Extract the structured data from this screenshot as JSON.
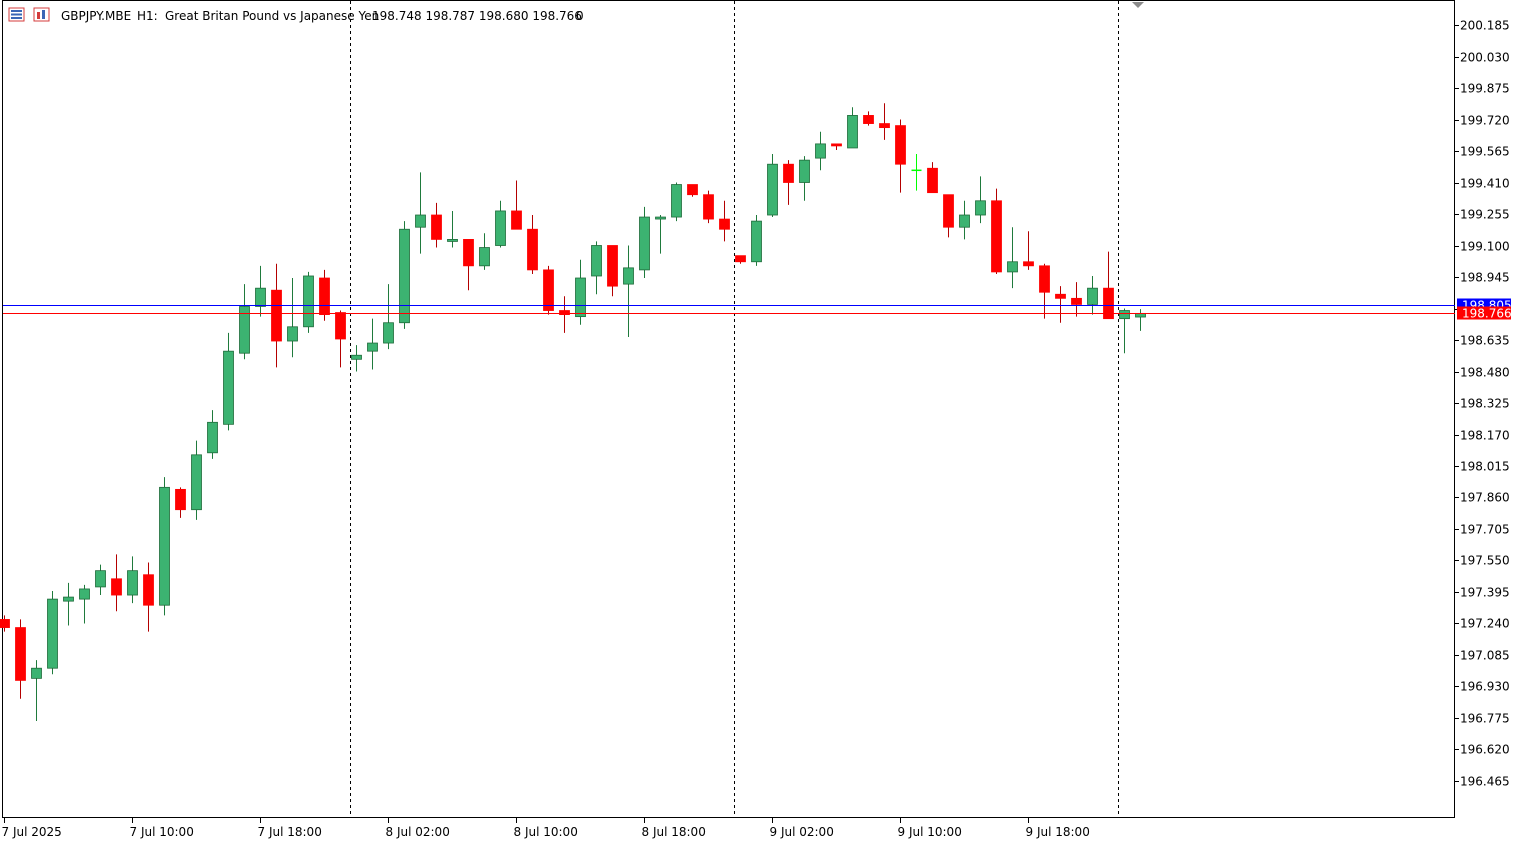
{
  "header": {
    "symbol": "GBPJPY.MBE",
    "timeframe": "H1:",
    "description": "Great Britan Pound vs Japanese Yen",
    "ohlc": "198.748 198.787 198.680 198.766",
    "volume": "0"
  },
  "colors": {
    "bull": "#3cb371",
    "bear": "#ff0000",
    "bull_highlight": "#00ff00",
    "ask_line": "#0000ff",
    "bid_line": "#ff0000",
    "axis": "#000000"
  },
  "price_labels": {
    "ask": "198.805",
    "bid": "198.766"
  },
  "chart_data": {
    "type": "candlestick",
    "ylim": [
      196.35,
      200.25
    ],
    "yticks": [
      "200.185",
      "200.030",
      "199.875",
      "199.720",
      "199.565",
      "199.410",
      "199.255",
      "199.100",
      "198.945",
      "198.790",
      "198.635",
      "198.480",
      "198.325",
      "198.170",
      "198.015",
      "197.860",
      "197.705",
      "197.550",
      "197.395",
      "197.240",
      "197.085",
      "196.930",
      "196.775",
      "196.620",
      "196.465"
    ],
    "xticks": [
      {
        "label": "7 Jul 2025",
        "index": 0
      },
      {
        "label": "7 Jul 10:00",
        "index": 8
      },
      {
        "label": "7 Jul 18:00",
        "index": 16
      },
      {
        "label": "8 Jul 02:00",
        "index": 24
      },
      {
        "label": "8 Jul 10:00",
        "index": 32
      },
      {
        "label": "8 Jul 18:00",
        "index": 40
      },
      {
        "label": "9 Jul 02:00",
        "index": 48
      },
      {
        "label": "9 Jul 10:00",
        "index": 56
      },
      {
        "label": "9 Jul 18:00",
        "index": 64
      }
    ],
    "day_separators": [
      22,
      46,
      70
    ],
    "ask": 198.805,
    "bid": 198.766,
    "candles": [
      [
        197.26,
        197.28,
        197.2,
        197.22
      ],
      [
        197.22,
        197.26,
        196.87,
        196.96
      ],
      [
        196.97,
        197.06,
        196.76,
        197.02
      ],
      [
        197.02,
        197.4,
        196.99,
        197.36
      ],
      [
        197.35,
        197.44,
        197.23,
        197.37
      ],
      [
        197.36,
        197.43,
        197.24,
        197.41
      ],
      [
        197.42,
        197.53,
        197.38,
        197.5
      ],
      [
        197.46,
        197.58,
        197.3,
        197.38
      ],
      [
        197.38,
        197.57,
        197.34,
        197.5
      ],
      [
        197.48,
        197.54,
        197.2,
        197.33
      ],
      [
        197.33,
        197.96,
        197.28,
        197.91
      ],
      [
        197.9,
        197.91,
        197.76,
        197.8
      ],
      [
        197.8,
        198.14,
        197.75,
        198.07
      ],
      [
        198.08,
        198.29,
        198.05,
        198.23
      ],
      [
        198.22,
        198.67,
        198.19,
        198.58
      ],
      [
        198.57,
        198.91,
        198.54,
        198.8
      ],
      [
        198.8,
        199.0,
        198.75,
        198.89
      ],
      [
        198.88,
        199.01,
        198.5,
        198.63
      ],
      [
        198.63,
        198.94,
        198.55,
        198.7
      ],
      [
        198.7,
        198.97,
        198.67,
        198.95
      ],
      [
        198.94,
        198.98,
        198.73,
        198.76
      ],
      [
        198.77,
        198.78,
        198.5,
        198.64
      ],
      [
        198.54,
        198.61,
        198.48,
        198.56
      ],
      [
        198.58,
        198.74,
        198.49,
        198.62
      ],
      [
        198.62,
        198.91,
        198.59,
        198.72
      ],
      [
        198.72,
        199.22,
        198.69,
        199.18
      ],
      [
        199.19,
        199.46,
        199.06,
        199.25
      ],
      [
        199.25,
        199.31,
        199.09,
        199.13
      ],
      [
        199.12,
        199.27,
        199.09,
        199.13
      ],
      [
        199.13,
        199.13,
        198.88,
        199.0
      ],
      [
        199.0,
        199.16,
        198.98,
        199.09
      ],
      [
        199.1,
        199.32,
        199.09,
        199.27
      ],
      [
        199.27,
        199.42,
        199.19,
        199.18
      ],
      [
        199.18,
        199.25,
        198.96,
        198.98
      ],
      [
        198.98,
        199.0,
        198.76,
        198.78
      ],
      [
        198.78,
        198.85,
        198.67,
        198.76
      ],
      [
        198.75,
        199.03,
        198.71,
        198.94
      ],
      [
        198.95,
        199.12,
        198.86,
        199.1
      ],
      [
        199.1,
        199.1,
        198.85,
        198.9
      ],
      [
        198.91,
        199.1,
        198.65,
        198.99
      ],
      [
        198.98,
        199.29,
        198.94,
        199.24
      ],
      [
        199.24,
        199.25,
        199.06,
        199.24
      ],
      [
        199.24,
        199.41,
        199.22,
        199.4
      ],
      [
        199.4,
        199.4,
        199.34,
        199.35
      ],
      [
        199.35,
        199.37,
        199.21,
        199.23
      ],
      [
        199.23,
        199.32,
        199.12,
        199.18
      ],
      [
        199.05,
        199.05,
        199.01,
        199.02
      ],
      [
        199.02,
        199.25,
        199.0,
        199.22
      ],
      [
        199.25,
        199.55,
        199.24,
        199.5
      ],
      [
        199.5,
        199.52,
        199.3,
        199.41
      ],
      [
        199.41,
        199.54,
        199.32,
        199.52
      ],
      [
        199.53,
        199.66,
        199.47,
        199.6
      ],
      [
        199.6,
        199.6,
        199.57,
        199.59
      ],
      [
        199.58,
        199.78,
        199.58,
        199.74
      ],
      [
        199.74,
        199.76,
        199.69,
        199.7
      ],
      [
        199.7,
        199.8,
        199.62,
        199.68
      ],
      [
        199.69,
        199.72,
        199.36,
        199.5
      ],
      [
        199.47,
        199.55,
        199.37,
        199.47
      ],
      [
        199.48,
        199.51,
        199.36,
        199.36
      ],
      [
        199.35,
        199.35,
        199.14,
        199.19
      ],
      [
        199.19,
        199.32,
        199.13,
        199.25
      ],
      [
        199.25,
        199.44,
        199.21,
        199.32
      ],
      [
        199.32,
        199.38,
        198.96,
        198.97
      ],
      [
        198.97,
        199.19,
        198.89,
        199.02
      ],
      [
        199.02,
        199.17,
        198.98,
        199.0
      ],
      [
        199.0,
        199.01,
        198.74,
        198.87
      ],
      [
        198.86,
        198.9,
        198.72,
        198.84
      ],
      [
        198.84,
        198.92,
        198.75,
        198.81
      ],
      [
        198.81,
        198.95,
        198.76,
        198.89
      ],
      [
        198.89,
        199.07,
        198.74,
        198.74
      ],
      [
        198.74,
        198.79,
        198.57,
        198.78
      ],
      [
        198.748,
        198.787,
        198.68,
        198.766
      ]
    ]
  }
}
